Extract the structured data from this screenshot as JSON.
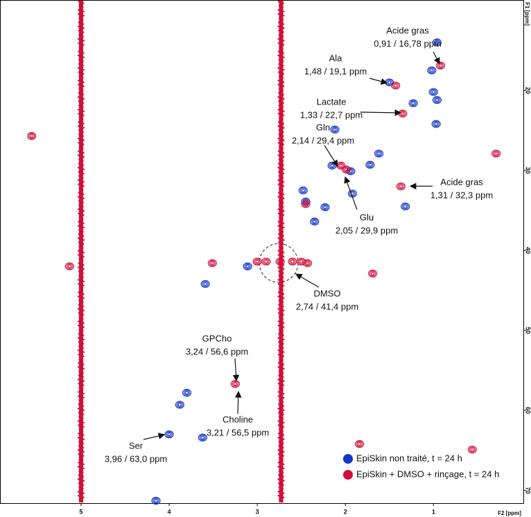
{
  "chart_data": {
    "type": "contour-scatter",
    "x_label": "F2 [ppm]",
    "y_label": "F1 [ppm]",
    "xlim": [
      5.92,
      -0.02
    ],
    "ylim": [
      8.7,
      71.6
    ],
    "xticks": [
      5,
      4,
      3,
      2,
      1
    ],
    "yticks": [
      20,
      30,
      40,
      50,
      60,
      70
    ],
    "legend": "lower right",
    "ridge_color": "#d0103a",
    "ridges_x": [
      5.0,
      2.73
    ],
    "series": [
      {
        "name": "EpiSkin non traité, t = 24 h",
        "color": "#1536c8",
        "x": [
          0.96,
          1.02,
          1.5,
          1.23,
          1.0,
          0.96,
          0.97,
          2.12,
          1.62,
          1.72,
          2.15,
          1.94,
          2.48,
          2.45,
          2.23,
          2.35,
          1.92,
          3.11,
          3.59,
          3.8,
          3.88,
          4.0,
          3.62,
          4.15,
          1.32
        ],
        "y": [
          14.0,
          17.5,
          19.0,
          21.6,
          20.2,
          21.2,
          24.2,
          24.9,
          27.9,
          29.3,
          29.4,
          30.1,
          32.5,
          33.9,
          34.6,
          36.4,
          32.9,
          42.0,
          44.2,
          57.8,
          59.3,
          63.0,
          63.4,
          71.3,
          34.5
        ]
      },
      {
        "name": "EpiSkin + DMSO + rinçage, t = 24 h",
        "color": "#d0103a",
        "x": [
          0.92,
          1.35,
          2.05,
          1.99,
          1.37,
          3.25,
          2.43,
          3.51,
          5.56,
          5.13,
          1.69,
          0.29,
          1.84,
          0.56,
          1.43,
          2.45,
          3.0,
          2.9,
          2.6,
          2.5,
          2.74
        ],
        "y": [
          16.9,
          22.9,
          29.4,
          29.9,
          32.0,
          56.7,
          41.6,
          41.6,
          25.7,
          42.0,
          42.9,
          27.9,
          64.2,
          64.9,
          19.4,
          34.2,
          41.4,
          41.4,
          41.4,
          41.4,
          41.4
        ]
      }
    ],
    "annotations": [
      {
        "name": "Acide gras",
        "shift": "0,91 / 16,78 ppm"
      },
      {
        "name": "Ala",
        "shift": "1,48 / 19,1 ppm"
      },
      {
        "name": "Lactate",
        "shift": "1,33 / 22,7 ppm"
      },
      {
        "name": "Gln",
        "shift": "2,14 / 29,4 ppm"
      },
      {
        "name": "Acide gras",
        "shift": "1,31 / 32,3 ppm"
      },
      {
        "name": "Glu",
        "shift": "2,05 / 29,9 ppm"
      },
      {
        "name": "DMSO",
        "shift": "2,74 / 41,4 ppm"
      },
      {
        "name": "GPCho",
        "shift": "3,24 / 56,6 ppm"
      },
      {
        "name": "Choline",
        "shift": "3,21 / 56,5 ppm"
      },
      {
        "name": "Ser",
        "shift": "3,96 / 63,0 ppm"
      }
    ]
  }
}
